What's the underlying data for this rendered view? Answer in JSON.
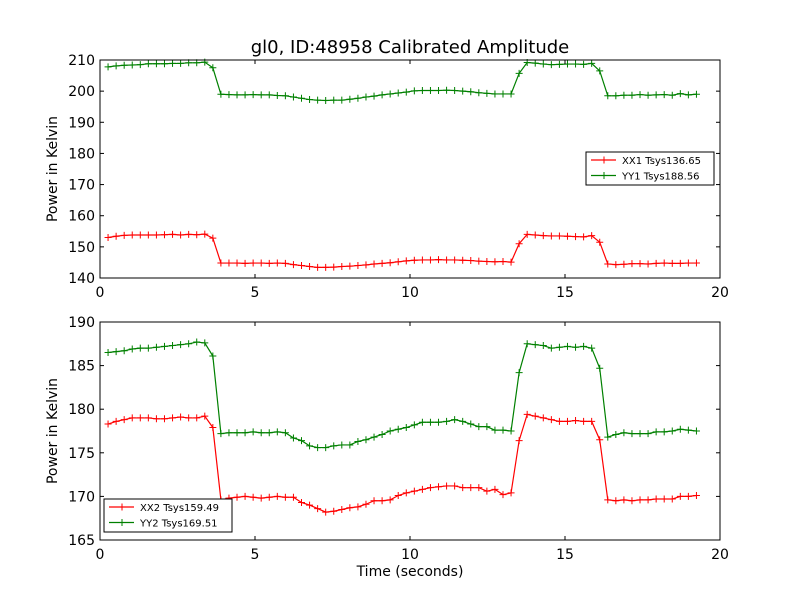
{
  "figure": {
    "title": "gl0, ID:48958 Calibrated Amplitude",
    "xlabel": "Time (seconds)"
  },
  "chart_data": [
    {
      "type": "line",
      "ylabel": "Power in Kelvin",
      "xlim": [
        0,
        20
      ],
      "ylim": [
        140,
        210
      ],
      "xticks": [
        0,
        5,
        10,
        15,
        20
      ],
      "yticks": [
        140,
        150,
        160,
        170,
        180,
        190,
        200,
        210
      ],
      "grid": false,
      "legend": "center-right",
      "series": [
        {
          "name": "XX1 Tsys136.65",
          "color": "#ff0000",
          "x": [
            0.26,
            0.52,
            0.78,
            1.04,
            1.3,
            1.56,
            1.82,
            2.08,
            2.34,
            2.6,
            2.86,
            3.12,
            3.38,
            3.64,
            3.9,
            4.16,
            4.42,
            4.68,
            4.94,
            5.2,
            5.46,
            5.72,
            5.98,
            6.24,
            6.5,
            6.76,
            7.02,
            7.28,
            7.54,
            7.8,
            8.06,
            8.32,
            8.58,
            8.84,
            9.1,
            9.36,
            9.62,
            9.88,
            10.14,
            10.4,
            10.66,
            10.92,
            11.18,
            11.44,
            11.7,
            11.96,
            12.22,
            12.48,
            12.74,
            13.0,
            13.26,
            13.52,
            13.78,
            14.04,
            14.3,
            14.56,
            14.82,
            15.08,
            15.34,
            15.6,
            15.86,
            16.12,
            16.38,
            16.64,
            16.9,
            17.16,
            17.42,
            17.68,
            17.94,
            18.2,
            18.46,
            18.72,
            18.98,
            19.24
          ],
          "y": [
            153.0,
            153.4,
            153.7,
            153.8,
            153.8,
            153.8,
            153.8,
            153.9,
            154.0,
            153.8,
            154.0,
            153.9,
            154.1,
            152.8,
            144.8,
            144.8,
            144.8,
            144.7,
            144.8,
            144.8,
            144.7,
            144.8,
            144.7,
            144.3,
            144.0,
            143.7,
            143.4,
            143.4,
            143.5,
            143.7,
            143.8,
            144.0,
            144.2,
            144.5,
            144.7,
            144.9,
            145.2,
            145.5,
            145.7,
            145.8,
            145.8,
            145.9,
            145.8,
            145.8,
            145.7,
            145.6,
            145.4,
            145.3,
            145.2,
            145.3,
            145.1,
            151.0,
            154.0,
            153.8,
            153.6,
            153.5,
            153.5,
            153.4,
            153.3,
            153.2,
            153.6,
            151.5,
            144.5,
            144.3,
            144.4,
            144.6,
            144.6,
            144.5,
            144.7,
            144.8,
            144.7,
            144.7,
            144.8,
            144.8
          ]
        },
        {
          "name": "YY1 Tsys188.56",
          "color": "#008000",
          "x": [
            0.26,
            0.52,
            0.78,
            1.04,
            1.3,
            1.56,
            1.82,
            2.08,
            2.34,
            2.6,
            2.86,
            3.12,
            3.38,
            3.64,
            3.9,
            4.16,
            4.42,
            4.68,
            4.94,
            5.2,
            5.46,
            5.72,
            5.98,
            6.24,
            6.5,
            6.76,
            7.02,
            7.28,
            7.54,
            7.8,
            8.06,
            8.32,
            8.58,
            8.84,
            9.1,
            9.36,
            9.62,
            9.88,
            10.14,
            10.4,
            10.66,
            10.92,
            11.18,
            11.44,
            11.7,
            11.96,
            12.22,
            12.48,
            12.74,
            13.0,
            13.26,
            13.52,
            13.78,
            14.04,
            14.3,
            14.56,
            14.82,
            15.08,
            15.34,
            15.6,
            15.86,
            16.12,
            16.38,
            16.64,
            16.9,
            17.16,
            17.42,
            17.68,
            17.94,
            18.2,
            18.46,
            18.72,
            18.98,
            19.24
          ],
          "y": [
            207.8,
            208.1,
            208.3,
            208.4,
            208.5,
            208.8,
            208.8,
            208.8,
            208.9,
            208.9,
            209.1,
            209.1,
            209.3,
            207.5,
            199.0,
            198.9,
            198.8,
            198.8,
            198.9,
            198.8,
            198.8,
            198.6,
            198.5,
            198.1,
            197.7,
            197.3,
            197.1,
            197.0,
            197.1,
            197.1,
            197.4,
            197.7,
            198.1,
            198.4,
            198.8,
            199.1,
            199.4,
            199.7,
            200.1,
            200.2,
            200.2,
            200.2,
            200.3,
            200.2,
            200.0,
            199.8,
            199.5,
            199.3,
            199.1,
            199.1,
            199.1,
            205.7,
            209.2,
            209.0,
            208.7,
            208.5,
            208.6,
            208.7,
            208.7,
            208.6,
            208.9,
            206.5,
            198.5,
            198.5,
            198.7,
            198.7,
            198.9,
            198.7,
            198.8,
            198.9,
            198.7,
            199.2,
            198.8,
            199.0
          ]
        }
      ]
    },
    {
      "type": "line",
      "xlabel": "Time (seconds)",
      "ylabel": "Power in Kelvin",
      "xlim": [
        0,
        20
      ],
      "ylim": [
        165,
        190
      ],
      "xticks": [
        0,
        5,
        10,
        15,
        20
      ],
      "yticks": [
        165,
        170,
        175,
        180,
        185,
        190
      ],
      "grid": false,
      "legend": "bottom-left",
      "series": [
        {
          "name": "XX2 Tsys159.49",
          "color": "#ff0000",
          "x": [
            0.26,
            0.52,
            0.78,
            1.04,
            1.3,
            1.56,
            1.82,
            2.08,
            2.34,
            2.6,
            2.86,
            3.12,
            3.38,
            3.64,
            3.9,
            4.16,
            4.42,
            4.68,
            4.94,
            5.2,
            5.46,
            5.72,
            5.98,
            6.24,
            6.5,
            6.76,
            7.02,
            7.28,
            7.54,
            7.8,
            8.06,
            8.32,
            8.58,
            8.84,
            9.1,
            9.36,
            9.62,
            9.88,
            10.14,
            10.4,
            10.66,
            10.92,
            11.18,
            11.44,
            11.7,
            11.96,
            12.22,
            12.48,
            12.74,
            13.0,
            13.26,
            13.52,
            13.78,
            14.04,
            14.3,
            14.56,
            14.82,
            15.08,
            15.34,
            15.6,
            15.86,
            16.12,
            16.38,
            16.64,
            16.9,
            17.16,
            17.42,
            17.68,
            17.94,
            18.2,
            18.46,
            18.72,
            18.98,
            19.24
          ],
          "y": [
            178.3,
            178.6,
            178.8,
            179.0,
            179.0,
            179.0,
            178.9,
            178.9,
            179.0,
            179.1,
            179.0,
            179.0,
            179.2,
            177.9,
            169.6,
            169.8,
            169.9,
            170.0,
            169.9,
            169.8,
            169.9,
            170.0,
            169.9,
            169.9,
            169.3,
            169.0,
            168.6,
            168.2,
            168.3,
            168.5,
            168.7,
            168.8,
            169.1,
            169.5,
            169.5,
            169.6,
            170.1,
            170.4,
            170.6,
            170.8,
            171.0,
            171.1,
            171.2,
            171.2,
            171.0,
            171.0,
            171.0,
            170.6,
            170.8,
            170.2,
            170.4,
            176.4,
            179.4,
            179.2,
            179.0,
            178.8,
            178.6,
            178.6,
            178.7,
            178.6,
            178.6,
            176.5,
            169.6,
            169.5,
            169.6,
            169.5,
            169.6,
            169.6,
            169.7,
            169.7,
            169.7,
            170.0,
            170.0,
            170.1
          ]
        },
        {
          "name": "YY2 Tsys169.51",
          "color": "#008000",
          "x": [
            0.26,
            0.52,
            0.78,
            1.04,
            1.3,
            1.56,
            1.82,
            2.08,
            2.34,
            2.6,
            2.86,
            3.12,
            3.38,
            3.64,
            3.9,
            4.16,
            4.42,
            4.68,
            4.94,
            5.2,
            5.46,
            5.72,
            5.98,
            6.24,
            6.5,
            6.76,
            7.02,
            7.28,
            7.54,
            7.8,
            8.06,
            8.32,
            8.58,
            8.84,
            9.1,
            9.36,
            9.62,
            9.88,
            10.14,
            10.4,
            10.66,
            10.92,
            11.18,
            11.44,
            11.7,
            11.96,
            12.22,
            12.48,
            12.74,
            13.0,
            13.26,
            13.52,
            13.78,
            14.04,
            14.3,
            14.56,
            14.82,
            15.08,
            15.34,
            15.6,
            15.86,
            16.12,
            16.38,
            16.64,
            16.9,
            17.16,
            17.42,
            17.68,
            17.94,
            18.2,
            18.46,
            18.72,
            18.98,
            19.24
          ],
          "y": [
            186.5,
            186.6,
            186.7,
            186.9,
            187.0,
            187.0,
            187.1,
            187.2,
            187.3,
            187.4,
            187.5,
            187.7,
            187.6,
            186.1,
            177.2,
            177.3,
            177.3,
            177.3,
            177.4,
            177.3,
            177.3,
            177.4,
            177.3,
            176.7,
            176.4,
            175.8,
            175.6,
            175.6,
            175.8,
            175.9,
            175.9,
            176.3,
            176.5,
            176.8,
            177.1,
            177.5,
            177.7,
            177.9,
            178.2,
            178.5,
            178.5,
            178.5,
            178.6,
            178.8,
            178.6,
            178.3,
            178.0,
            178.0,
            177.6,
            177.6,
            177.5,
            184.2,
            187.5,
            187.4,
            187.3,
            187.0,
            187.1,
            187.2,
            187.1,
            187.2,
            187.0,
            184.7,
            176.8,
            177.1,
            177.3,
            177.2,
            177.2,
            177.2,
            177.4,
            177.4,
            177.5,
            177.7,
            177.6,
            177.5
          ]
        }
      ]
    }
  ]
}
